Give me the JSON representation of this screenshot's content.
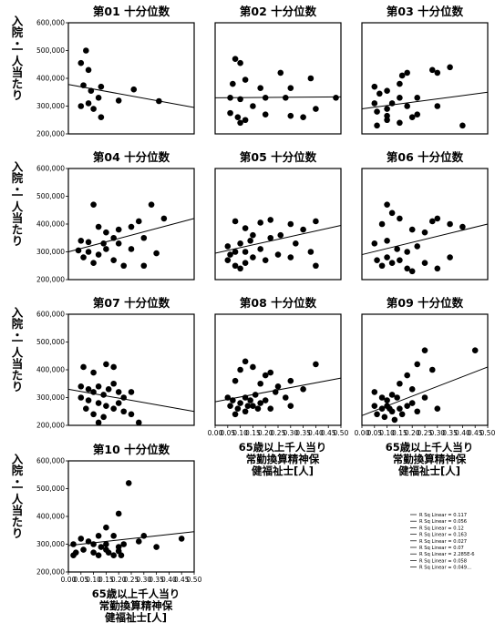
{
  "chart_data": [
    {
      "type": "scatter",
      "title": "第01 十分位数",
      "ylabel": [
        "入院・",
        "一人当たり"
      ],
      "xlabel": "",
      "xlim": [
        0,
        0.5
      ],
      "ylim": [
        200000,
        600000
      ],
      "yticks": [
        "600,000",
        "500,000",
        "400,000",
        "300,000",
        "200,000"
      ],
      "xticks": [],
      "points": [
        [
          0.07,
          500000
        ],
        [
          0.05,
          455000
        ],
        [
          0.08,
          430000
        ],
        [
          0.06,
          375000
        ],
        [
          0.09,
          355000
        ],
        [
          0.13,
          370000
        ],
        [
          0.12,
          330000
        ],
        [
          0.08,
          310000
        ],
        [
          0.05,
          300000
        ],
        [
          0.1,
          290000
        ],
        [
          0.13,
          260000
        ],
        [
          0.26,
          360000
        ],
        [
          0.36,
          318000
        ],
        [
          0.2,
          320000
        ]
      ],
      "fit": [
        [
          0,
          378000
        ],
        [
          0.5,
          295000
        ]
      ]
    },
    {
      "type": "scatter",
      "title": "第02 十分位数",
      "ylabel": [],
      "xlabel": "",
      "xlim": [
        0,
        0.5
      ],
      "ylim": [
        200000,
        600000
      ],
      "yticks": [],
      "xticks": [],
      "points": [
        [
          0.08,
          470000
        ],
        [
          0.1,
          455000
        ],
        [
          0.12,
          395000
        ],
        [
          0.07,
          380000
        ],
        [
          0.18,
          365000
        ],
        [
          0.26,
          420000
        ],
        [
          0.3,
          365000
        ],
        [
          0.38,
          400000
        ],
        [
          0.06,
          330000
        ],
        [
          0.1,
          325000
        ],
        [
          0.15,
          300000
        ],
        [
          0.2,
          330000
        ],
        [
          0.28,
          330000
        ],
        [
          0.48,
          330000
        ],
        [
          0.06,
          275000
        ],
        [
          0.09,
          260000
        ],
        [
          0.12,
          250000
        ],
        [
          0.1,
          240000
        ],
        [
          0.2,
          270000
        ],
        [
          0.3,
          265000
        ],
        [
          0.4,
          290000
        ],
        [
          0.35,
          260000
        ]
      ],
      "fit": [
        [
          0,
          330000
        ],
        [
          0.5,
          333000
        ]
      ]
    },
    {
      "type": "scatter",
      "title": "第03 十分位数",
      "ylabel": [],
      "xlabel": "",
      "xlim": [
        0,
        0.5
      ],
      "ylim": [
        200000,
        600000
      ],
      "yticks": [],
      "xticks": [],
      "points": [
        [
          0.05,
          370000
        ],
        [
          0.07,
          345000
        ],
        [
          0.1,
          355000
        ],
        [
          0.15,
          380000
        ],
        [
          0.16,
          410000
        ],
        [
          0.18,
          420000
        ],
        [
          0.15,
          330000
        ],
        [
          0.12,
          310000
        ],
        [
          0.1,
          290000
        ],
        [
          0.05,
          310000
        ],
        [
          0.06,
          280000
        ],
        [
          0.1,
          265000
        ],
        [
          0.18,
          300000
        ],
        [
          0.22,
          330000
        ],
        [
          0.28,
          430000
        ],
        [
          0.3,
          420000
        ],
        [
          0.35,
          440000
        ],
        [
          0.3,
          300000
        ],
        [
          0.2,
          260000
        ],
        [
          0.06,
          230000
        ],
        [
          0.1,
          250000
        ],
        [
          0.22,
          270000
        ],
        [
          0.15,
          240000
        ],
        [
          0.4,
          230000
        ]
      ],
      "fit": [
        [
          0,
          290000
        ],
        [
          0.5,
          350000
        ]
      ]
    },
    {
      "type": "scatter",
      "title": "第04 十分位数",
      "ylabel": [
        "入院・",
        "一人当たり"
      ],
      "xlabel": "",
      "xlim": [
        0,
        0.5
      ],
      "ylim": [
        200000,
        600000
      ],
      "yticks": [
        "600,000",
        "500,000",
        "400,000",
        "300,000",
        "200,000"
      ],
      "xticks": [],
      "points": [
        [
          0.1,
          470000
        ],
        [
          0.05,
          340000
        ],
        [
          0.08,
          335000
        ],
        [
          0.12,
          390000
        ],
        [
          0.15,
          370000
        ],
        [
          0.18,
          350000
        ],
        [
          0.2,
          380000
        ],
        [
          0.25,
          390000
        ],
        [
          0.28,
          410000
        ],
        [
          0.33,
          470000
        ],
        [
          0.38,
          420000
        ],
        [
          0.08,
          300000
        ],
        [
          0.12,
          290000
        ],
        [
          0.15,
          310000
        ],
        [
          0.2,
          330000
        ],
        [
          0.25,
          310000
        ],
        [
          0.3,
          350000
        ],
        [
          0.35,
          295000
        ],
        [
          0.06,
          280000
        ],
        [
          0.18,
          270000
        ],
        [
          0.22,
          250000
        ],
        [
          0.3,
          250000
        ],
        [
          0.1,
          260000
        ],
        [
          0.04,
          305000
        ],
        [
          0.14,
          330000
        ]
      ],
      "fit": [
        [
          0,
          300000
        ],
        [
          0.5,
          420000
        ]
      ]
    },
    {
      "type": "scatter",
      "title": "第05 十分位数",
      "ylabel": [],
      "xlabel": "",
      "xlim": [
        0,
        0.5
      ],
      "ylim": [
        200000,
        600000
      ],
      "yticks": [],
      "xticks": [],
      "points": [
        [
          0.08,
          410000
        ],
        [
          0.12,
          385000
        ],
        [
          0.15,
          360000
        ],
        [
          0.18,
          405000
        ],
        [
          0.22,
          415000
        ],
        [
          0.3,
          400000
        ],
        [
          0.35,
          380000
        ],
        [
          0.4,
          410000
        ],
        [
          0.05,
          320000
        ],
        [
          0.08,
          300000
        ],
        [
          0.1,
          330000
        ],
        [
          0.14,
          340000
        ],
        [
          0.18,
          310000
        ],
        [
          0.22,
          350000
        ],
        [
          0.26,
          360000
        ],
        [
          0.32,
          330000
        ],
        [
          0.38,
          300000
        ],
        [
          0.05,
          270000
        ],
        [
          0.08,
          250000
        ],
        [
          0.1,
          240000
        ],
        [
          0.12,
          260000
        ],
        [
          0.15,
          280000
        ],
        [
          0.2,
          270000
        ],
        [
          0.25,
          290000
        ],
        [
          0.3,
          280000
        ],
        [
          0.4,
          250000
        ],
        [
          0.06,
          290000
        ],
        [
          0.12,
          300000
        ]
      ],
      "fit": [
        [
          0,
          295000
        ],
        [
          0.5,
          395000
        ]
      ]
    },
    {
      "type": "scatter",
      "title": "第06 十分位数",
      "ylabel": [],
      "xlabel": "",
      "xlim": [
        0,
        0.5
      ],
      "ylim": [
        200000,
        600000
      ],
      "yticks": [],
      "xticks": [],
      "points": [
        [
          0.1,
          470000
        ],
        [
          0.12,
          440000
        ],
        [
          0.08,
          400000
        ],
        [
          0.15,
          420000
        ],
        [
          0.2,
          380000
        ],
        [
          0.3,
          420000
        ],
        [
          0.35,
          400000
        ],
        [
          0.4,
          390000
        ],
        [
          0.05,
          330000
        ],
        [
          0.1,
          340000
        ],
        [
          0.14,
          310000
        ],
        [
          0.18,
          300000
        ],
        [
          0.22,
          320000
        ],
        [
          0.25,
          370000
        ],
        [
          0.28,
          410000
        ],
        [
          0.06,
          270000
        ],
        [
          0.1,
          280000
        ],
        [
          0.12,
          260000
        ],
        [
          0.15,
          270000
        ],
        [
          0.18,
          240000
        ],
        [
          0.2,
          230000
        ],
        [
          0.25,
          260000
        ],
        [
          0.3,
          240000
        ],
        [
          0.35,
          280000
        ],
        [
          0.08,
          250000
        ]
      ],
      "fit": [
        [
          0,
          290000
        ],
        [
          0.5,
          400000
        ]
      ]
    },
    {
      "type": "scatter",
      "title": "第07 十分位数",
      "ylabel": [
        "入院・",
        "一人当たり"
      ],
      "xlabel": "",
      "xlim": [
        0,
        0.5
      ],
      "ylim": [
        200000,
        600000
      ],
      "yticks": [
        "600,000",
        "500,000",
        "400,000",
        "300,000",
        "200,000"
      ],
      "xticks": [],
      "points": [
        [
          0.06,
          410000
        ],
        [
          0.1,
          390000
        ],
        [
          0.15,
          420000
        ],
        [
          0.18,
          410000
        ],
        [
          0.05,
          340000
        ],
        [
          0.08,
          330000
        ],
        [
          0.1,
          320000
        ],
        [
          0.12,
          340000
        ],
        [
          0.14,
          310000
        ],
        [
          0.16,
          330000
        ],
        [
          0.18,
          350000
        ],
        [
          0.2,
          320000
        ],
        [
          0.22,
          300000
        ],
        [
          0.25,
          320000
        ],
        [
          0.05,
          300000
        ],
        [
          0.08,
          290000
        ],
        [
          0.12,
          280000
        ],
        [
          0.15,
          270000
        ],
        [
          0.18,
          260000
        ],
        [
          0.2,
          280000
        ],
        [
          0.22,
          250000
        ],
        [
          0.07,
          260000
        ],
        [
          0.1,
          240000
        ],
        [
          0.14,
          230000
        ],
        [
          0.25,
          240000
        ],
        [
          0.28,
          210000
        ],
        [
          0.12,
          210000
        ]
      ],
      "fit": [
        [
          0,
          330000
        ],
        [
          0.5,
          250000
        ]
      ]
    },
    {
      "type": "scatter",
      "title": "第08 十分位数",
      "ylabel": [],
      "xlabel": "65歳以上千人当り 常勤換算精神保健福祉士[人]",
      "xlim": [
        0,
        0.5
      ],
      "ylim": [
        200000,
        600000
      ],
      "yticks": [],
      "xticks": [
        "0.00",
        "0.05",
        "0.10",
        "0.15",
        "0.20",
        "0.25",
        "0.30",
        "0.35",
        "0.40",
        "0.45",
        "0.50"
      ],
      "points": [
        [
          0.12,
          430000
        ],
        [
          0.15,
          410000
        ],
        [
          0.1,
          400000
        ],
        [
          0.08,
          360000
        ],
        [
          0.2,
          380000
        ],
        [
          0.22,
          390000
        ],
        [
          0.3,
          360000
        ],
        [
          0.4,
          420000
        ],
        [
          0.18,
          350000
        ],
        [
          0.25,
          340000
        ],
        [
          0.05,
          300000
        ],
        [
          0.07,
          290000
        ],
        [
          0.1,
          280000
        ],
        [
          0.12,
          300000
        ],
        [
          0.14,
          290000
        ],
        [
          0.16,
          310000
        ],
        [
          0.2,
          290000
        ],
        [
          0.24,
          320000
        ],
        [
          0.28,
          300000
        ],
        [
          0.06,
          270000
        ],
        [
          0.09,
          260000
        ],
        [
          0.12,
          250000
        ],
        [
          0.15,
          270000
        ],
        [
          0.18,
          280000
        ],
        [
          0.22,
          260000
        ],
        [
          0.08,
          240000
        ],
        [
          0.3,
          270000
        ],
        [
          0.35,
          330000
        ],
        [
          0.13,
          270000
        ],
        [
          0.17,
          260000
        ]
      ],
      "fit": [
        [
          0,
          285000
        ],
        [
          0.5,
          370000
        ]
      ]
    },
    {
      "type": "scatter",
      "title": "第09 十分位数",
      "ylabel": [],
      "xlabel": "65歳以上千人当り 常勤換算精神保健福祉士[人]",
      "xlim": [
        0,
        0.5
      ],
      "ylim": [
        200000,
        600000
      ],
      "yticks": [],
      "xticks": [
        "0.00",
        "0.05",
        "0.10",
        "0.15",
        "0.20",
        "0.25",
        "0.30",
        "0.35",
        "0.40",
        "0.45",
        "0.50"
      ],
      "points": [
        [
          0.25,
          470000
        ],
        [
          0.45,
          470000
        ],
        [
          0.18,
          380000
        ],
        [
          0.22,
          420000
        ],
        [
          0.28,
          400000
        ],
        [
          0.15,
          350000
        ],
        [
          0.05,
          320000
        ],
        [
          0.08,
          300000
        ],
        [
          0.1,
          290000
        ],
        [
          0.12,
          310000
        ],
        [
          0.14,
          300000
        ],
        [
          0.2,
          330000
        ],
        [
          0.25,
          300000
        ],
        [
          0.05,
          270000
        ],
        [
          0.08,
          260000
        ],
        [
          0.1,
          270000
        ],
        [
          0.12,
          250000
        ],
        [
          0.15,
          260000
        ],
        [
          0.2,
          280000
        ],
        [
          0.22,
          250000
        ],
        [
          0.3,
          260000
        ],
        [
          0.06,
          240000
        ],
        [
          0.09,
          230000
        ],
        [
          0.13,
          220000
        ],
        [
          0.16,
          240000
        ],
        [
          0.11,
          260000
        ],
        [
          0.18,
          270000
        ]
      ],
      "fit": [
        [
          0,
          235000
        ],
        [
          0.5,
          410000
        ]
      ]
    },
    {
      "type": "scatter",
      "title": "第10 十分位数",
      "ylabel": [
        "入院・",
        "一人当たり"
      ],
      "xlabel": "65歳以上千人当り 常勤換算精神保健福祉士[人]",
      "xlim": [
        0,
        0.5
      ],
      "ylim": [
        200000,
        600000
      ],
      "yticks": [
        "600,000",
        "500,000",
        "400,000",
        "300,000",
        "200,000"
      ],
      "xticks": [
        "0.00",
        "0.05",
        "0.10",
        "0.15",
        "0.20",
        "0.25",
        "0.30",
        "0.35",
        "0.40",
        "0.45",
        "0.50"
      ],
      "points": [
        [
          0.24,
          520000
        ],
        [
          0.2,
          410000
        ],
        [
          0.15,
          360000
        ],
        [
          0.12,
          330000
        ],
        [
          0.18,
          330000
        ],
        [
          0.3,
          330000
        ],
        [
          0.05,
          320000
        ],
        [
          0.02,
          300000
        ],
        [
          0.08,
          310000
        ],
        [
          0.1,
          300000
        ],
        [
          0.15,
          300000
        ],
        [
          0.2,
          290000
        ],
        [
          0.28,
          310000
        ],
        [
          0.35,
          290000
        ],
        [
          0.45,
          320000
        ],
        [
          0.03,
          270000
        ],
        [
          0.06,
          280000
        ],
        [
          0.1,
          270000
        ],
        [
          0.12,
          260000
        ],
        [
          0.16,
          270000
        ],
        [
          0.18,
          260000
        ],
        [
          0.21,
          260000
        ],
        [
          0.2,
          275000
        ],
        [
          0.15,
          280000
        ],
        [
          0.02,
          260000
        ],
        [
          0.22,
          300000
        ],
        [
          0.13,
          290000
        ]
      ],
      "fit": [
        [
          0,
          295000
        ],
        [
          0.5,
          345000
        ]
      ]
    }
  ],
  "legend": {
    "entries": [
      "R Sq Linear = 0.117",
      "R Sq Linear = 0.056",
      "R Sq Linear = 0.12",
      "R Sq Linear = 0.163",
      "R Sq Linear = 0.027",
      "R Sq Linear = 0.07",
      "R Sq Linear = 2.285E-6",
      "R Sq Linear = 0.058",
      "R Sq Linear = 0.049..."
    ]
  }
}
